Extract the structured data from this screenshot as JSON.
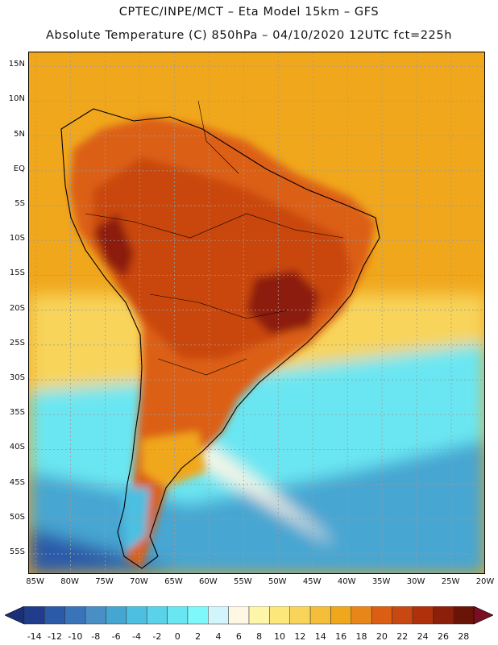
{
  "header": {
    "line1": "CPTEC/INPE/MCT –  Eta Model 15km – GFS",
    "line2": "Absolute Temperature (C) 850hPa – 04/10/2020 12UTC fct=225h"
  },
  "map": {
    "region": "South America",
    "variable": "Absolute Temperature (C) 850hPa",
    "lat_range": [
      -58,
      17
    ],
    "lon_range": [
      -86,
      -20
    ],
    "lat_labels": [
      "15N",
      "10N",
      "5N",
      "EQ",
      "5S",
      "10S",
      "15S",
      "20S",
      "25S",
      "30S",
      "35S",
      "40S",
      "45S",
      "50S",
      "55S"
    ],
    "lat_values": [
      15,
      10,
      5,
      0,
      -5,
      -10,
      -15,
      -20,
      -25,
      -30,
      -35,
      -40,
      -45,
      -50,
      -55
    ],
    "lon_labels": [
      "85W",
      "80W",
      "75W",
      "70W",
      "65W",
      "60W",
      "55W",
      "50W",
      "45W",
      "40W",
      "35W",
      "30W",
      "25W",
      "20W"
    ],
    "lon_values": [
      -85,
      -80,
      -75,
      -70,
      -65,
      -60,
      -55,
      -50,
      -45,
      -40,
      -35,
      -30,
      -25,
      -20
    ]
  },
  "colorbar": {
    "labels": [
      "-14",
      "-12",
      "-10",
      "-8",
      "-6",
      "-4",
      "-2",
      "0",
      "2",
      "4",
      "6",
      "8",
      "10",
      "12",
      "14",
      "16",
      "18",
      "20",
      "22",
      "24",
      "26",
      "28"
    ],
    "colors": [
      "#1f3d8c",
      "#2a5aa8",
      "#3a74b8",
      "#4a8ec6",
      "#46a6d2",
      "#4dbfe0",
      "#5ad2ea",
      "#6ae6f2",
      "#7ef8fa",
      "#d2f4fb",
      "#fdf7e4",
      "#fdf6a8",
      "#fbe77a",
      "#f8d45a",
      "#f4bd3a",
      "#f0a71c",
      "#e8861a",
      "#dc5e12",
      "#c94710",
      "#b0300c",
      "#8c1f0a",
      "#6a1408"
    ],
    "low_color": "#1a2f78",
    "high_color": "#7a0f22"
  }
}
